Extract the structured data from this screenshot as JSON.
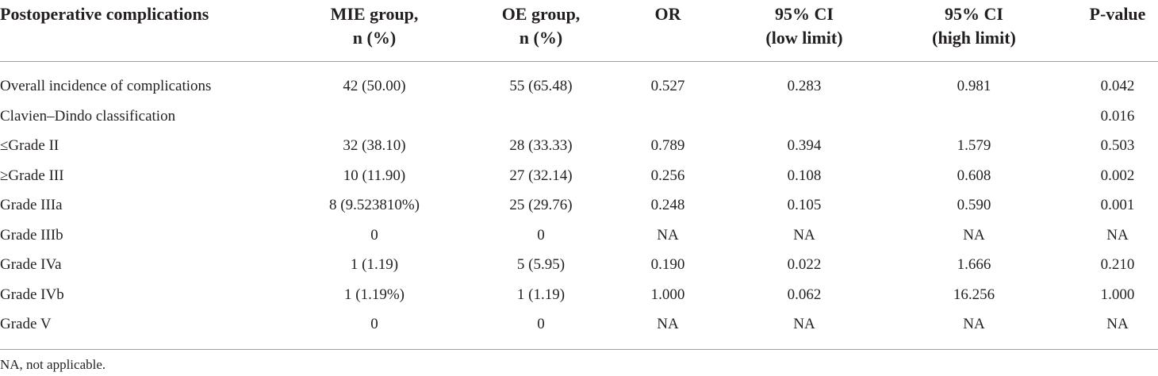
{
  "table": {
    "headers": [
      [
        "Postoperative complications"
      ],
      [
        "MIE group,",
        "n (%)"
      ],
      [
        "OE group,",
        "n (%)"
      ],
      [
        "OR"
      ],
      [
        "95% CI",
        "(low limit)"
      ],
      [
        "95% CI",
        "(high limit)"
      ],
      [
        "P-value"
      ]
    ],
    "rows": [
      [
        "Overall incidence of complications",
        "42 (50.00)",
        "55 (65.48)",
        "0.527",
        "0.283",
        "0.981",
        "0.042"
      ],
      [
        "Clavien–Dindo classification",
        "",
        "",
        "",
        "",
        "",
        "0.016"
      ],
      [
        "≤Grade II",
        "32 (38.10)",
        "28 (33.33)",
        "0.789",
        "0.394",
        "1.579",
        "0.503"
      ],
      [
        "≥Grade III",
        "10 (11.90)",
        "27 (32.14)",
        "0.256",
        "0.108",
        "0.608",
        "0.002"
      ],
      [
        "Grade IIIa",
        "8 (9.523810%)",
        "25 (29.76)",
        "0.248",
        "0.105",
        "0.590",
        "0.001"
      ],
      [
        "Grade IIIb",
        "0",
        "0",
        "NA",
        "NA",
        "NA",
        "NA"
      ],
      [
        "Grade IVa",
        "1 (1.19)",
        "5 (5.95)",
        "0.190",
        "0.022",
        "1.666",
        "0.210"
      ],
      [
        "Grade IVb",
        "1 (1.19%)",
        "1 (1.19)",
        "1.000",
        "0.062",
        "16.256",
        "1.000"
      ],
      [
        "Grade V",
        "0",
        "0",
        "NA",
        "NA",
        "NA",
        "NA"
      ]
    ]
  },
  "footnote": "NA, not applicable."
}
